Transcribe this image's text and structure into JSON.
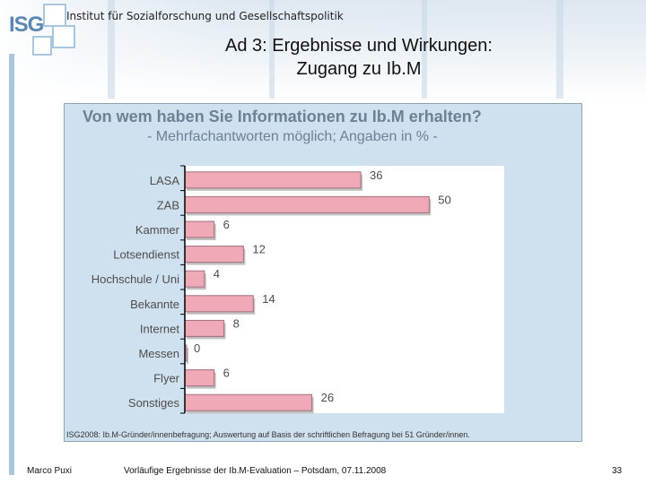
{
  "header": {
    "logo": "ISG",
    "institute": "Institut für Sozialforschung und Gesellschaftspolitik",
    "title_line1": "Ad 3: Ergebnisse und Wirkungen:",
    "title_line2": "Zugang zu Ib.M"
  },
  "chart_data": {
    "type": "bar",
    "orientation": "horizontal",
    "title": "Von wem haben Sie Informationen zu Ib.M erhalten?",
    "subtitle": "- Mehrfachantworten möglich; Angaben in % -",
    "categories": [
      "LASA",
      "ZAB",
      "Kammer",
      "Lotsendienst",
      "Hochschule / Uni",
      "Bekannte",
      "Internet",
      "Messen",
      "Flyer",
      "Sonstiges"
    ],
    "values": [
      36,
      50,
      6,
      12,
      4,
      14,
      8,
      0,
      6,
      26
    ],
    "xlim": [
      0,
      65
    ],
    "source": "ISG2008: Ib.M-Gründer/innenbefragung; Auswertung auf Basis der schriftlichen Befragung bei 51 Gründer/innen.",
    "colors": {
      "bar": "#f0a9b7",
      "bar_edge": "#a4707e",
      "plot_bg": "#ffffff",
      "axis": "#000000"
    }
  },
  "footer": {
    "author": "Marco Puxi",
    "caption": "Vorläufige Ergebnisse der Ib.M-Evaluation – Potsdam, 07.11.2008",
    "page_number": "33"
  }
}
